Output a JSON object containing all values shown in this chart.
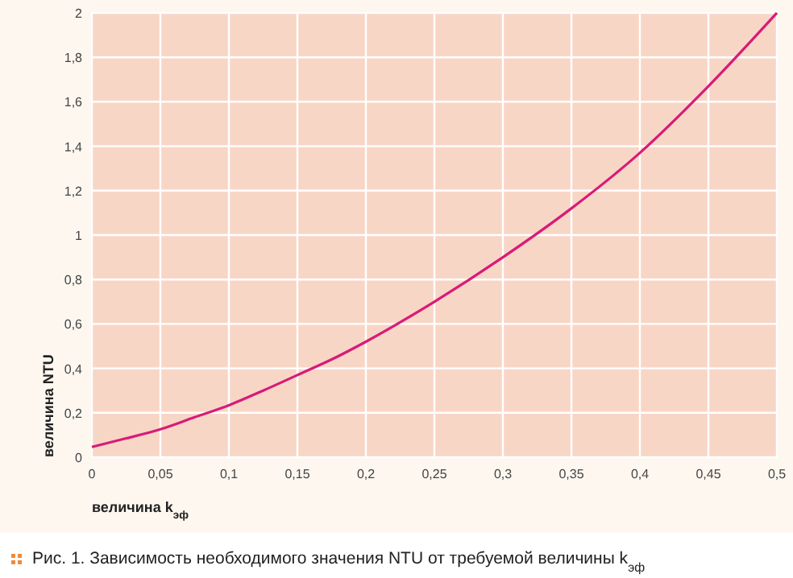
{
  "chart_data": {
    "type": "line",
    "title": "Рис. 1. Зависимость необходимого значения NTU от требуемой величины k$_{эф}$",
    "xlabel": "величина k$_{эф}$",
    "ylabel": "величина NTU",
    "x": [
      0,
      0.025,
      0.05,
      0.075,
      0.1,
      0.125,
      0.15,
      0.175,
      0.2,
      0.25,
      0.3,
      0.35,
      0.4,
      0.45,
      0.5
    ],
    "series": [
      {
        "color": "#d81b78",
        "values": [
          0.046,
          0.085,
          0.126,
          0.18,
          0.234,
          0.3,
          0.37,
          0.44,
          0.52,
          0.7,
          0.9,
          1.12,
          1.37,
          1.67,
          2.0
        ]
      }
    ],
    "xlim": [
      0,
      0.5
    ],
    "ylim": [
      0,
      2
    ],
    "xticks": [
      0,
      {
        "value": 0.05,
        "label": "0,05"
      },
      {
        "value": 0.1,
        "label": "0,1"
      },
      {
        "value": 0.15,
        "label": "0,15"
      },
      {
        "value": 0.2,
        "label": "0,2"
      },
      {
        "value": 0.25,
        "label": "0,25"
      },
      {
        "value": 0.3,
        "label": "0,3"
      },
      {
        "value": 0.35,
        "label": "0,35"
      },
      {
        "value": 0.4,
        "label": "0,4"
      },
      {
        "value": 0.45,
        "label": "0,45"
      },
      {
        "value": 0.5,
        "label": "0,5"
      }
    ],
    "yticks": [
      0,
      {
        "value": 0.2,
        "label": "0,2"
      },
      {
        "value": 0.4,
        "label": "0,4"
      },
      {
        "value": 0.6,
        "label": "0,6"
      },
      {
        "value": 0.8,
        "label": "0,8"
      },
      1,
      {
        "value": 1.2,
        "label": "1,2"
      },
      {
        "value": 1.4,
        "label": "1,4"
      },
      {
        "value": 1.6,
        "label": "1,6"
      },
      {
        "value": 1.8,
        "label": "1,8"
      },
      2
    ],
    "grid": true,
    "marker": "none",
    "line_style": "solid"
  }
}
